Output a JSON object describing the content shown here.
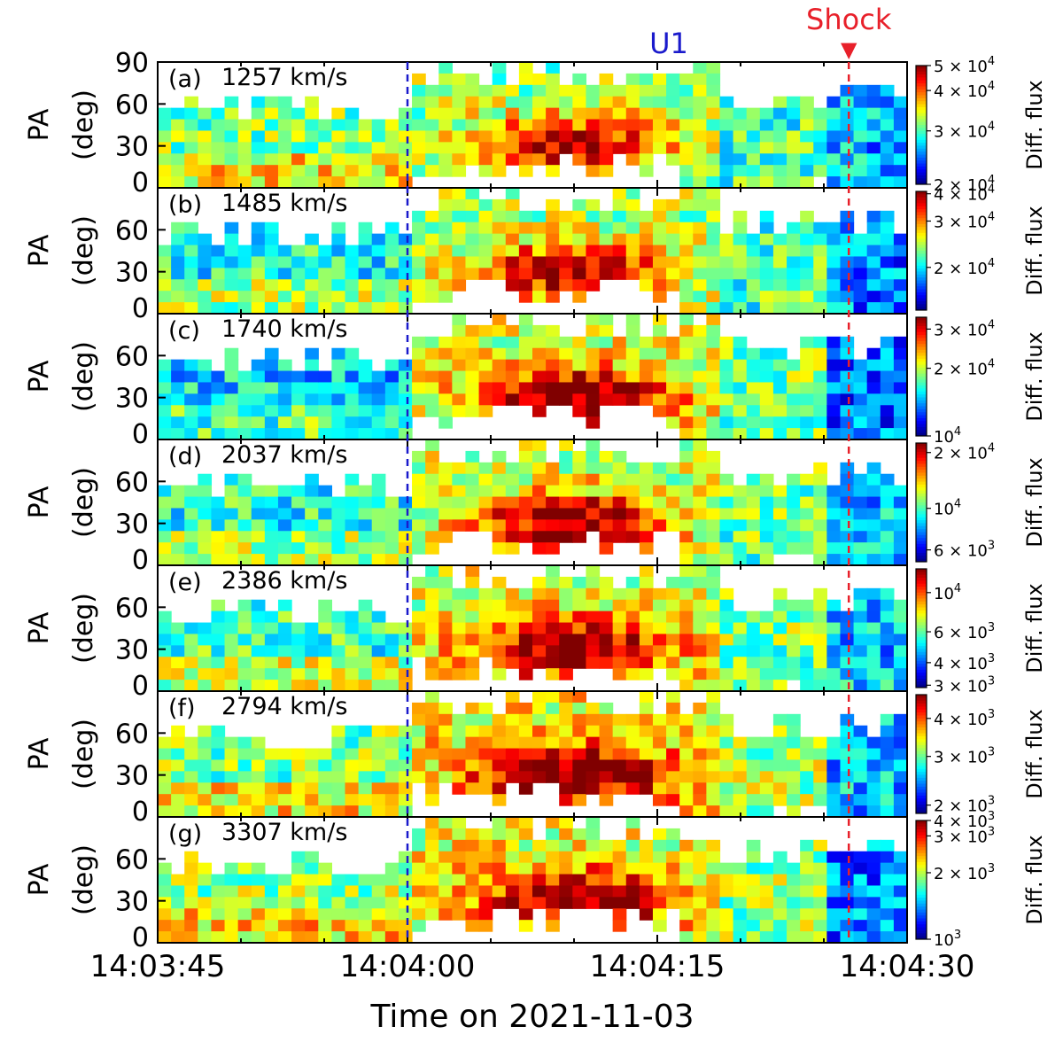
{
  "chart_data": {
    "type": "heatmap",
    "title": "",
    "xlabel": "Time on 2021-11-03",
    "x_ticks": [
      "14:03:45",
      "14:04:00",
      "14:04:15",
      "14:04:30"
    ],
    "x_tick_seconds": [
      0,
      15,
      30,
      45
    ],
    "xlim_seconds": [
      0,
      45
    ],
    "ylabel_line1": "PA",
    "ylabel_line2": "(deg)",
    "ylim": [
      0,
      90
    ],
    "y_ticks": [
      "0",
      "30",
      "60",
      "90"
    ],
    "colorbar_title": "Diff. flux",
    "colormap": "jet",
    "colorbar_scale": "log",
    "markers": [
      {
        "label": "U1",
        "time_seconds": 15,
        "color": "#1a1acc",
        "style": "dashed"
      },
      {
        "label": "Shock",
        "time_seconds": 41.5,
        "color": "#e8202a",
        "style": "dashed",
        "arrow_symbol": "▼"
      }
    ],
    "gap_description": "empty at low PA between about 15.5 s and 31 s",
    "panels": [
      {
        "id": "a",
        "label": "(a)",
        "speed": "1257 km/s",
        "colorbar_ticks": [
          {
            "base": "5 × 10",
            "exp": "4",
            "frac": 1.0
          },
          {
            "base": "4 × 10",
            "exp": "4",
            "frac": 0.79
          },
          {
            "base": "3 × 10",
            "exp": "4",
            "frac": 0.45
          },
          {
            "base": "2 × 10",
            "exp": "4",
            "frac": 0.0
          }
        ],
        "pre_upstream_level": 0.55,
        "post_upstream_level": 0.62,
        "downstream_level": 0.3
      },
      {
        "id": "b",
        "label": "(b)",
        "speed": "1485 km/s",
        "colorbar_ticks": [
          {
            "base": "4 × 10",
            "exp": "4",
            "frac": 0.98
          },
          {
            "base": "3 × 10",
            "exp": "4",
            "frac": 0.75
          },
          {
            "base": "2 × 10",
            "exp": "4",
            "frac": 0.36
          }
        ],
        "pre_upstream_level": 0.45,
        "post_upstream_level": 0.63,
        "downstream_level": 0.25
      },
      {
        "id": "c",
        "label": "(c)",
        "speed": "1740 km/s",
        "colorbar_ticks": [
          {
            "base": "3 × 10",
            "exp": "4",
            "frac": 0.9
          },
          {
            "base": "2 × 10",
            "exp": "4",
            "frac": 0.57
          },
          {
            "base": "10",
            "exp": "4",
            "frac": 0.0
          }
        ],
        "pre_upstream_level": 0.38,
        "post_upstream_level": 0.68,
        "downstream_level": 0.22
      },
      {
        "id": "d",
        "label": "(d)",
        "speed": "2037 km/s",
        "colorbar_ticks": [
          {
            "base": "2 × 10",
            "exp": "4",
            "frac": 0.92
          },
          {
            "base": "10",
            "exp": "4",
            "frac": 0.45
          },
          {
            "base": "6 × 10",
            "exp": "3",
            "frac": 0.1
          }
        ],
        "pre_upstream_level": 0.45,
        "post_upstream_level": 0.66,
        "downstream_level": 0.3
      },
      {
        "id": "e",
        "label": "(e)",
        "speed": "2386 km/s",
        "colorbar_ticks": [
          {
            "base": "10",
            "exp": "4",
            "frac": 0.8
          },
          {
            "base": "6 × 10",
            "exp": "3",
            "frac": 0.47
          },
          {
            "base": "4 × 10",
            "exp": "3",
            "frac": 0.21
          },
          {
            "base": "3 × 10",
            "exp": "3",
            "frac": 0.02
          }
        ],
        "pre_upstream_level": 0.48,
        "post_upstream_level": 0.68,
        "downstream_level": 0.32
      },
      {
        "id": "f",
        "label": "(f)",
        "speed": "2794 km/s",
        "colorbar_ticks": [
          {
            "base": "4 × 10",
            "exp": "3",
            "frac": 0.8
          },
          {
            "base": "3 × 10",
            "exp": "3",
            "frac": 0.48
          },
          {
            "base": "2 × 10",
            "exp": "3",
            "frac": 0.07
          }
        ],
        "pre_upstream_level": 0.55,
        "post_upstream_level": 0.72,
        "downstream_level": 0.3
      },
      {
        "id": "g",
        "label": "(g)",
        "speed": "3307 km/s",
        "colorbar_ticks": [
          {
            "base": "4 × 10",
            "exp": "3",
            "frac": 1.0
          },
          {
            "base": "3 × 10",
            "exp": "3",
            "frac": 0.87
          },
          {
            "base": "2 × 10",
            "exp": "3",
            "frac": 0.56
          },
          {
            "base": "10",
            "exp": "3",
            "frac": 0.0
          }
        ],
        "pre_upstream_level": 0.58,
        "post_upstream_level": 0.7,
        "downstream_level": 0.25
      }
    ]
  }
}
